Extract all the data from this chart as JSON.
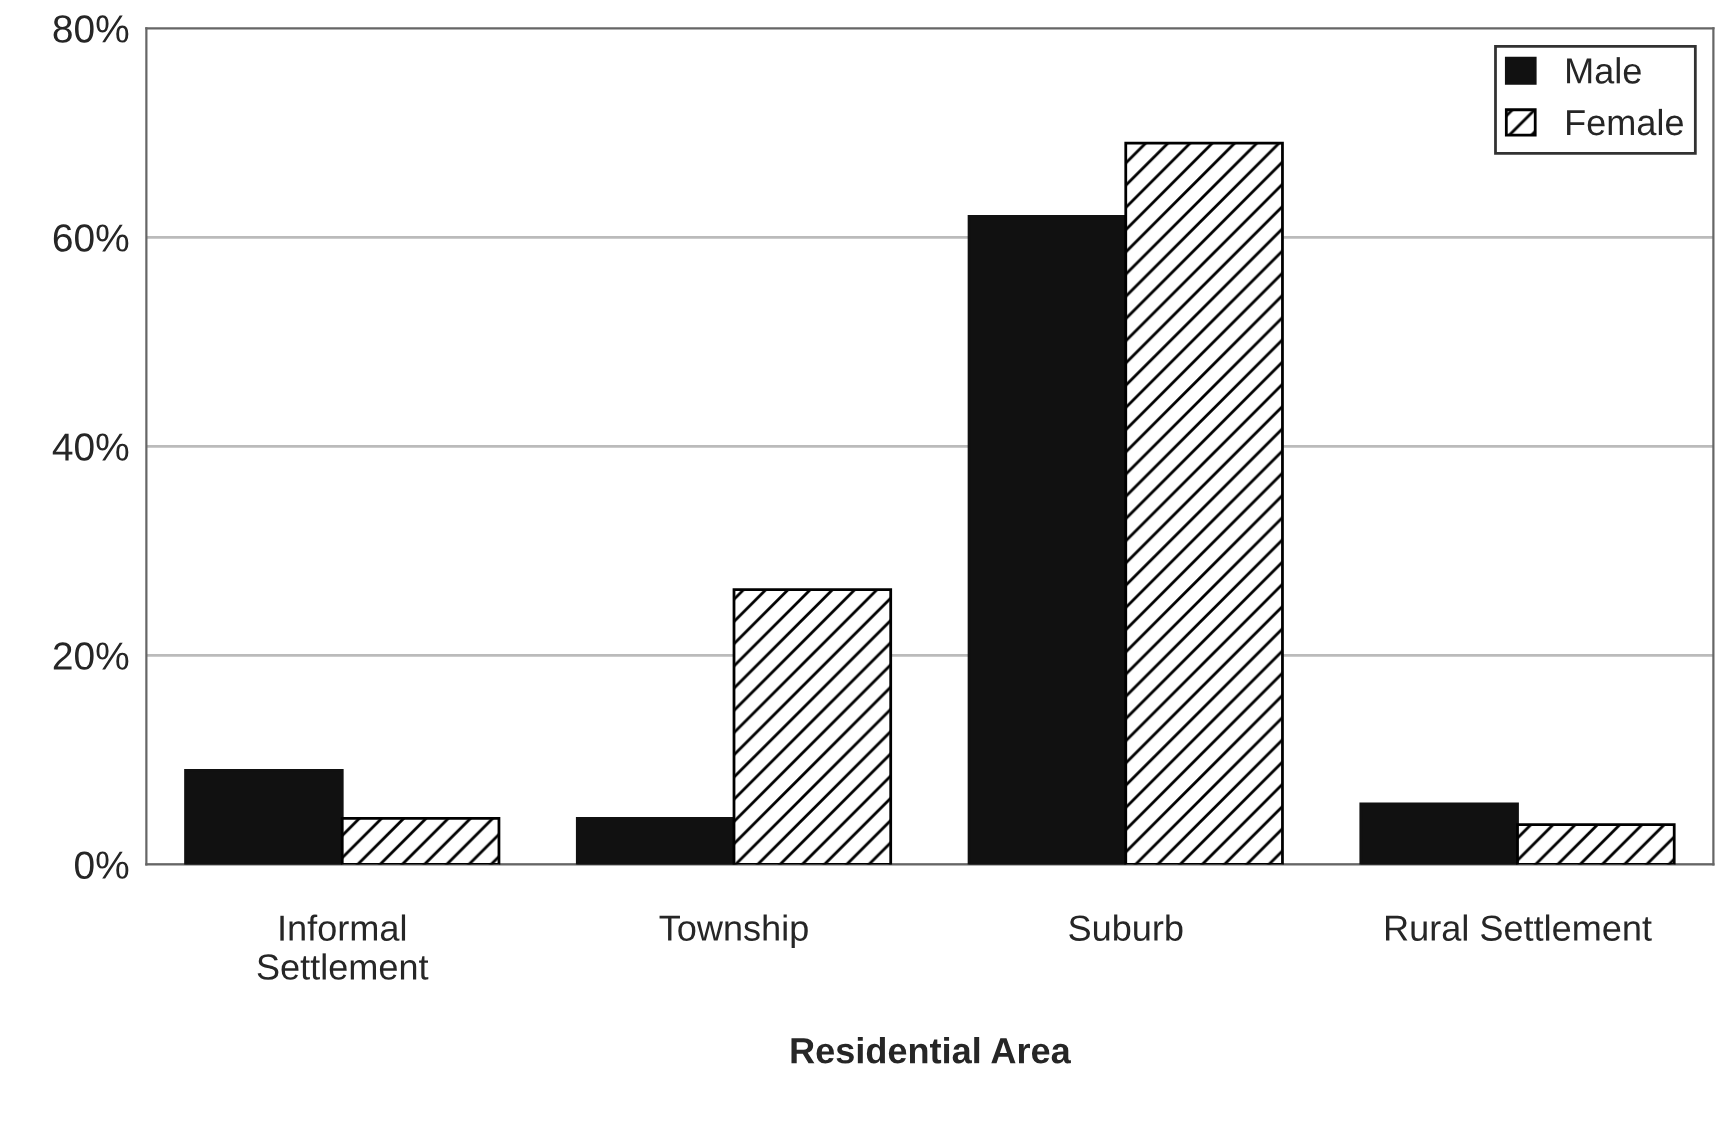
{
  "chart_data": {
    "type": "bar",
    "xlabel": "Residential Area",
    "categories": [
      "Informal\nSettlement",
      "Township",
      "Suburb",
      "Rural Settlement"
    ],
    "series": [
      {
        "name": "Male",
        "color": "#111111",
        "values": [
          9.0,
          4.4,
          62,
          5.8
        ]
      },
      {
        "name": "Female",
        "color": "#000000",
        "values": [
          4.4,
          26.3,
          69,
          3.8
        ]
      }
    ],
    "ylim": [
      0,
      80
    ],
    "yticks": [
      {
        "value": 0,
        "label": "0%"
      },
      {
        "value": 20,
        "label": "20%"
      },
      {
        "value": 40,
        "label": "40%"
      },
      {
        "value": 60,
        "label": "60%"
      },
      {
        "value": 80,
        "label": "80%"
      }
    ],
    "grid": "y",
    "legend": "top right"
  }
}
